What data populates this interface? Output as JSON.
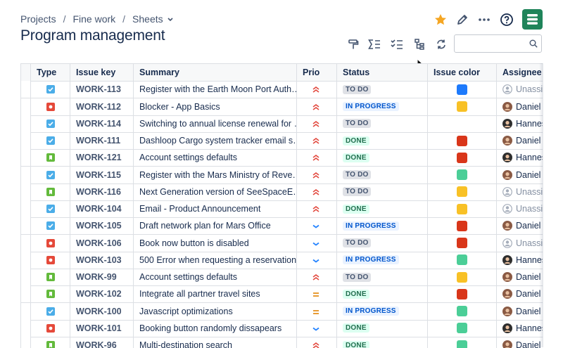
{
  "breadcrumbs": [
    "Projects",
    "Fine work",
    "Sheets"
  ],
  "title": "Program management",
  "table": {
    "columns": [
      "Type",
      "Issue key",
      "Summary",
      "Prio",
      "Status",
      "Issue color",
      "Assignee"
    ],
    "rows": [
      {
        "type": "task",
        "key": "WORK-113",
        "summary": "Register with the Earth Moon Port Auth…",
        "prio": "high",
        "status": "TO DO",
        "color": "#1d7afc",
        "assignee": "Unassig",
        "avatar": null
      },
      {
        "type": "bug",
        "key": "WORK-112",
        "summary": "Blocker - App Basics",
        "prio": "high",
        "status": "IN PROGRESS",
        "color": "#f8c126",
        "assignee": "Daniel F",
        "avatar": "#8a5a44"
      },
      {
        "type": "task",
        "key": "WORK-114",
        "summary": "Switching to annual license renewal for …",
        "prio": "high",
        "status": "TO DO",
        "color": null,
        "assignee": "Hannes",
        "avatar": "#2e2e2e"
      },
      {
        "type": "task",
        "key": "WORK-111",
        "summary": "Dashloop Cargo system tracker email s…",
        "prio": "high",
        "status": "DONE",
        "color": "#d9361a",
        "assignee": "Daniel F",
        "avatar": "#8a5a44"
      },
      {
        "type": "story",
        "key": "WORK-121",
        "summary": "Account settings defaults",
        "prio": "high",
        "status": "DONE",
        "color": "#d9361a",
        "assignee": "Hannes",
        "avatar": "#2e2e2e"
      },
      {
        "type": "task",
        "key": "WORK-115",
        "summary": "Register with the Mars Ministry of Reve…",
        "prio": "high",
        "status": "TO DO",
        "color": "#4bce97",
        "assignee": "Daniel F",
        "avatar": "#8a5a44"
      },
      {
        "type": "story",
        "key": "WORK-116",
        "summary": "Next Generation version of SeeSpaceE…",
        "prio": "high",
        "status": "TO DO",
        "color": "#f8c126",
        "assignee": "Unassig",
        "avatar": null
      },
      {
        "type": "task",
        "key": "WORK-104",
        "summary": "Email - Product Announcement",
        "prio": "high",
        "status": "DONE",
        "color": "#f8c126",
        "assignee": "Unassig",
        "avatar": null
      },
      {
        "type": "task",
        "key": "WORK-105",
        "summary": "Draft network plan for Mars Office",
        "prio": "low",
        "status": "IN PROGRESS",
        "color": "#d9361a",
        "assignee": "Daniel F",
        "avatar": "#8a5a44"
      },
      {
        "type": "bug",
        "key": "WORK-106",
        "summary": "Book now button is disabled",
        "prio": "low",
        "status": "TO DO",
        "color": "#d9361a",
        "assignee": "Unassig",
        "avatar": null
      },
      {
        "type": "bug",
        "key": "WORK-103",
        "summary": "500 Error when requesting a reservation",
        "prio": "low",
        "status": "IN PROGRESS",
        "color": "#4bce97",
        "assignee": "Hannes",
        "avatar": "#2e2e2e"
      },
      {
        "type": "story",
        "key": "WORK-99",
        "summary": "Account settings defaults",
        "prio": "high",
        "status": "TO DO",
        "color": "#f8c126",
        "assignee": "Daniel F",
        "avatar": "#8a5a44"
      },
      {
        "type": "story",
        "key": "WORK-102",
        "summary": "Integrate all partner travel sites",
        "prio": "medium",
        "status": "DONE",
        "color": "#d9361a",
        "assignee": "Daniel F",
        "avatar": "#8a5a44"
      },
      {
        "type": "task",
        "key": "WORK-100",
        "summary": "Javascript optimizations",
        "prio": "medium",
        "status": "IN PROGRESS",
        "color": "#4bce97",
        "assignee": "Daniel F",
        "avatar": "#8a5a44"
      },
      {
        "type": "bug",
        "key": "WORK-101",
        "summary": "Booking button randomly dissapears",
        "prio": "low",
        "status": "DONE",
        "color": "#4bce97",
        "assignee": "Hannes",
        "avatar": "#2e2e2e"
      },
      {
        "type": "story",
        "key": "WORK-96",
        "summary": "Multi-destination search",
        "prio": "high",
        "status": "DONE",
        "color": "#4bce97",
        "assignee": "Daniel F",
        "avatar": "#8a5a44"
      }
    ]
  }
}
